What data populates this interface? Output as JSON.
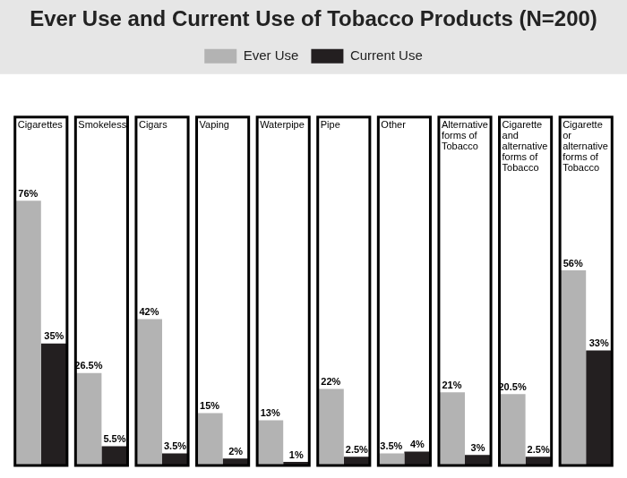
{
  "chart_data": {
    "type": "bar",
    "title": "Ever Use and Current Use of Tobacco Products (N=200)",
    "categories": [
      "Cigarettes",
      "Smokeless",
      "Cigars",
      "Vaping",
      "Waterpipe",
      "Pipe",
      "Other",
      "Alternative forms of Tobacco",
      "Cigarette and alternative forms of Tobacco",
      "Cigarette or alternative forms of Tobacco"
    ],
    "series": [
      {
        "name": "Ever Use",
        "color": "#b3b3b3",
        "values": [
          76,
          26.5,
          42,
          15,
          13,
          22,
          3.5,
          21,
          20.5,
          56
        ],
        "value_labels": [
          "76%",
          "26.5%",
          "42%",
          "15%",
          "13%",
          "22%",
          "3.5%",
          "21%",
          "20.5%",
          "56%"
        ]
      },
      {
        "name": "Current Use",
        "color": "#231f20",
        "values": [
          35,
          5.5,
          3.5,
          2,
          1,
          2.5,
          4,
          3,
          2.5,
          33
        ],
        "value_labels": [
          "35%",
          "5.5%",
          "3.5%",
          "2%",
          "1%",
          "2.5%",
          "4%",
          "3%",
          "2.5%",
          "33%"
        ]
      }
    ],
    "ylim": [
      0,
      100
    ],
    "grid": false,
    "legend": "top",
    "data_labels": true,
    "tick_labels": false
  }
}
